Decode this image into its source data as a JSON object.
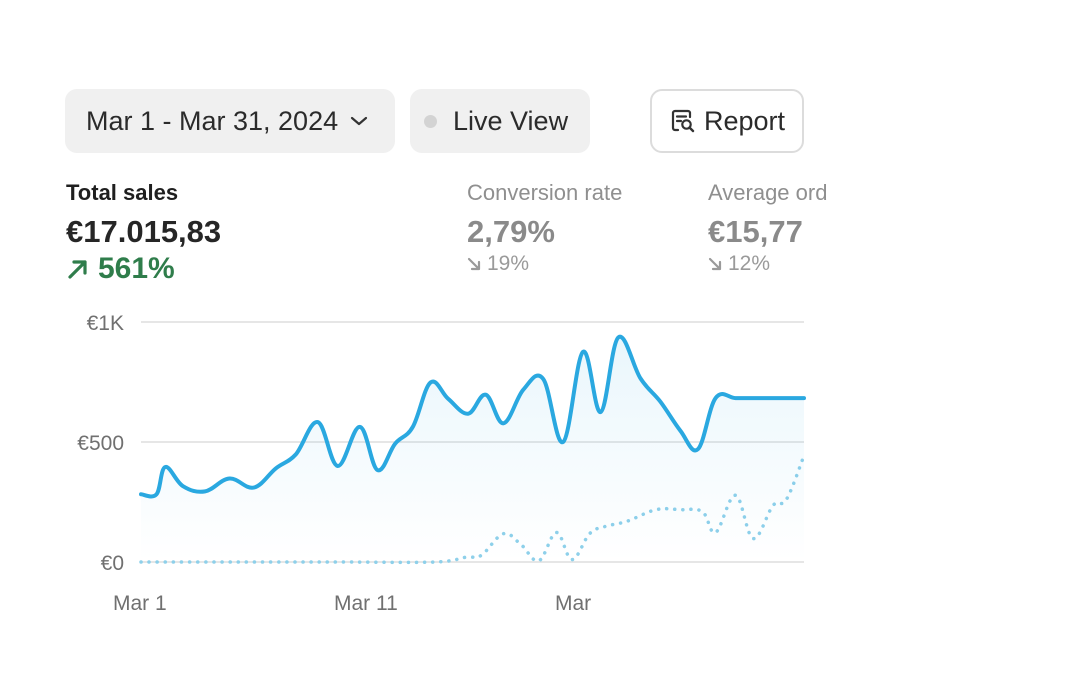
{
  "toolbar": {
    "date_range_label": "Mar 1 - Mar 31, 2024",
    "live_view_label": "Live View",
    "report_label": "Report"
  },
  "metrics": {
    "total_sales": {
      "label": "Total sales",
      "value": "€17.015,83",
      "change": "561%",
      "direction": "up"
    },
    "conversion_rate": {
      "label": "Conversion rate",
      "value": "2,79%",
      "change": "19%",
      "direction": "down"
    },
    "average_order": {
      "label": "Average ord",
      "value": "€15,77",
      "change": "12%",
      "direction": "down"
    }
  },
  "colors": {
    "current_series": "#2aa8e0",
    "previous_series": "#8ed0ea",
    "positive": "#2f7d4b",
    "muted": "#8f8f8f"
  },
  "chart_data": {
    "type": "area",
    "x_tick_labels": [
      "Mar 1",
      "Mar 11",
      "Mar"
    ],
    "x_tick_days": [
      1,
      11,
      21
    ],
    "y_tick_labels": [
      "€1K",
      "€500",
      "€0"
    ],
    "y_tick_values": [
      1000,
      500,
      0
    ],
    "ylim": [
      0,
      1000
    ],
    "xlim": [
      1,
      31
    ],
    "grid": true,
    "series": [
      {
        "style": "solid-area",
        "x": [
          1,
          1.7,
          2.1,
          2.9,
          3.9,
          5.0,
          6.1,
          7.1,
          8.0,
          9.0,
          9.9,
          10.9,
          11.7,
          12.5,
          13.3,
          14.1,
          14.9,
          15.8,
          16.6,
          17.4,
          18.3,
          19.2,
          20.1,
          21.0,
          21.8,
          22.6,
          23.6,
          24.5,
          25.4,
          26.2,
          27.0,
          27.9,
          28.8,
          29.6,
          30.3,
          31.0
        ],
        "y": [
          282,
          282,
          396,
          316,
          294,
          348,
          310,
          390,
          448,
          583,
          400,
          563,
          383,
          493,
          563,
          748,
          680,
          618,
          697,
          578,
          718,
          763,
          500,
          876,
          625,
          936,
          765,
          668,
          548,
          470,
          683,
          683,
          683,
          683,
          683,
          683
        ]
      },
      {
        "style": "dotted",
        "x": [
          1,
          4,
          7,
          10,
          14.3,
          15.7,
          16.4,
          17.4,
          18.2,
          19.0,
          19.8,
          20.5,
          21.3,
          22.0,
          23.0,
          24.3,
          25.4,
          26.4,
          27.0,
          27.9,
          28.7,
          29.6,
          30.2,
          31.0
        ],
        "y": [
          0,
          0,
          0,
          0,
          0,
          20,
          28,
          118,
          72,
          5,
          123,
          10,
          118,
          148,
          170,
          218,
          218,
          210,
          123,
          278,
          98,
          236,
          260,
          443
        ]
      }
    ]
  }
}
